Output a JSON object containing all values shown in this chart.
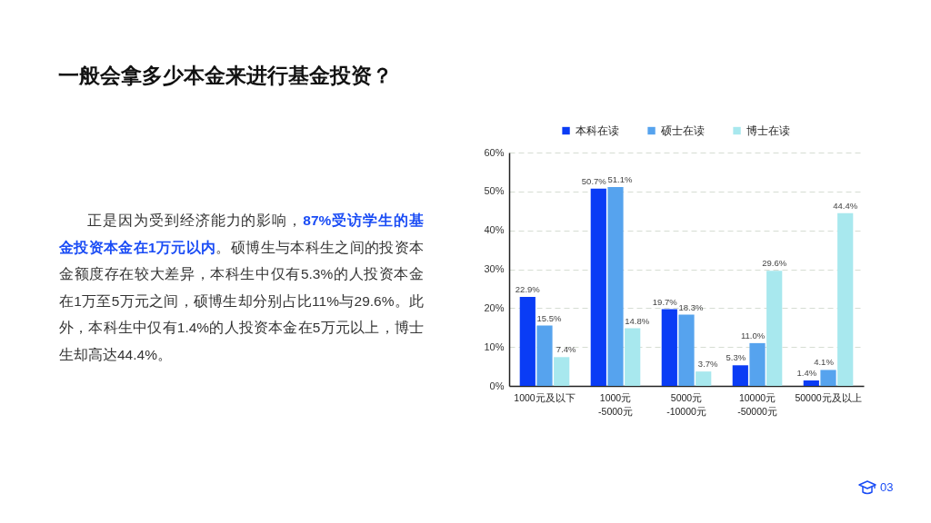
{
  "chart_data": {
    "type": "bar",
    "title": "一般会拿多少本金来进行基金投资？",
    "annotations": [
      "正是因为受到经济能力的影响，",
      "87%受访学生的基",
      "金投资本金在1万元以内",
      "。硕博生与本科生之间的投资本",
      "金额度存在较大差异，本科生中仅有5.3%的人投资本金",
      "在1万至5万元之间，硕博生却分别占比11%与29.6%。此",
      "外，本科生中仅有1.4%的人投资本金在5万元以上，博士",
      "生却高达44.4%。",
      "03"
    ],
    "categories": [
      "1000元及以下",
      "1000元\n-5000元",
      "5000元\n-10000元",
      "10000元\n-50000元",
      "50000元及以上"
    ],
    "series": [
      {
        "name": "本科在读",
        "color": "#0a3cf5",
        "values": [
          22.9,
          50.7,
          19.7,
          5.3,
          1.4
        ],
        "value_labels": [
          "22.9%",
          "50.7%",
          "19.7%",
          "5.3%",
          "1.4%"
        ]
      },
      {
        "name": "硕士在读",
        "color": "#56a3ee",
        "values": [
          15.5,
          51.1,
          18.3,
          11.0,
          4.1
        ],
        "value_labels": [
          "15.5%",
          "51.1%",
          "18.3%",
          "11.0%",
          "4.1%"
        ]
      },
      {
        "name": "博士在读",
        "color": "#a8e8ee",
        "values": [
          7.4,
          14.8,
          3.7,
          29.6,
          44.4
        ],
        "value_labels": [
          "7.4%",
          "14.8%",
          "3.7%",
          "29.6%",
          "44.4%"
        ]
      }
    ],
    "ylim": [
      0,
      60
    ],
    "yticks": [
      {
        "value": 0,
        "label": "0%"
      },
      {
        "value": 10,
        "label": "10%"
      },
      {
        "value": 20,
        "label": "20%"
      },
      {
        "value": 30,
        "label": "30%"
      },
      {
        "value": 40,
        "label": "40%"
      },
      {
        "value": 50,
        "label": "50%"
      },
      {
        "value": 60,
        "label": "60%"
      }
    ],
    "grid": "y",
    "legend": "top"
  }
}
